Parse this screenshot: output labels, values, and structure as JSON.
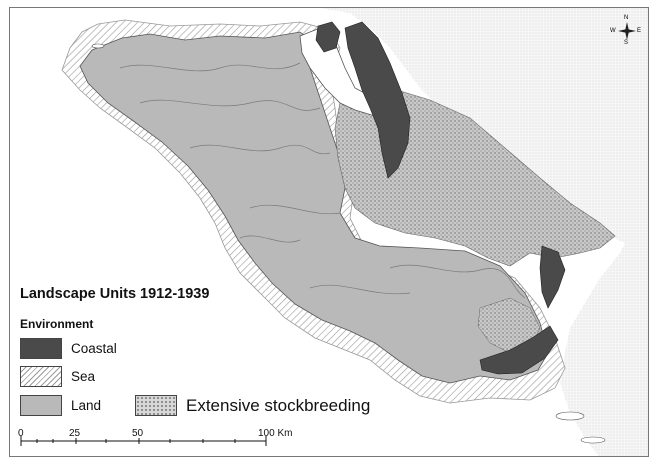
{
  "legend": {
    "title": "Landscape Units 1912-1939",
    "subtitle": "Environment",
    "items": [
      {
        "label": "Coastal",
        "key": "coastal"
      },
      {
        "label": "Sea",
        "key": "sea"
      },
      {
        "label": "Land",
        "key": "land"
      },
      {
        "label": "Extensive stockbreeding",
        "key": "stockbreeding"
      }
    ]
  },
  "scale_bar": {
    "ticks": [
      "0",
      "25",
      "50",
      "100 Km"
    ]
  },
  "north_arrow": {
    "letters": {
      "n": "N",
      "s": "S",
      "e": "E",
      "w": "W"
    }
  },
  "colors": {
    "coastal": "#4a4a4a",
    "land": "#b9b9b9",
    "sea": "#ffffff",
    "stockbreeding": "#9a9a9a",
    "background": "#f1f1f1"
  }
}
